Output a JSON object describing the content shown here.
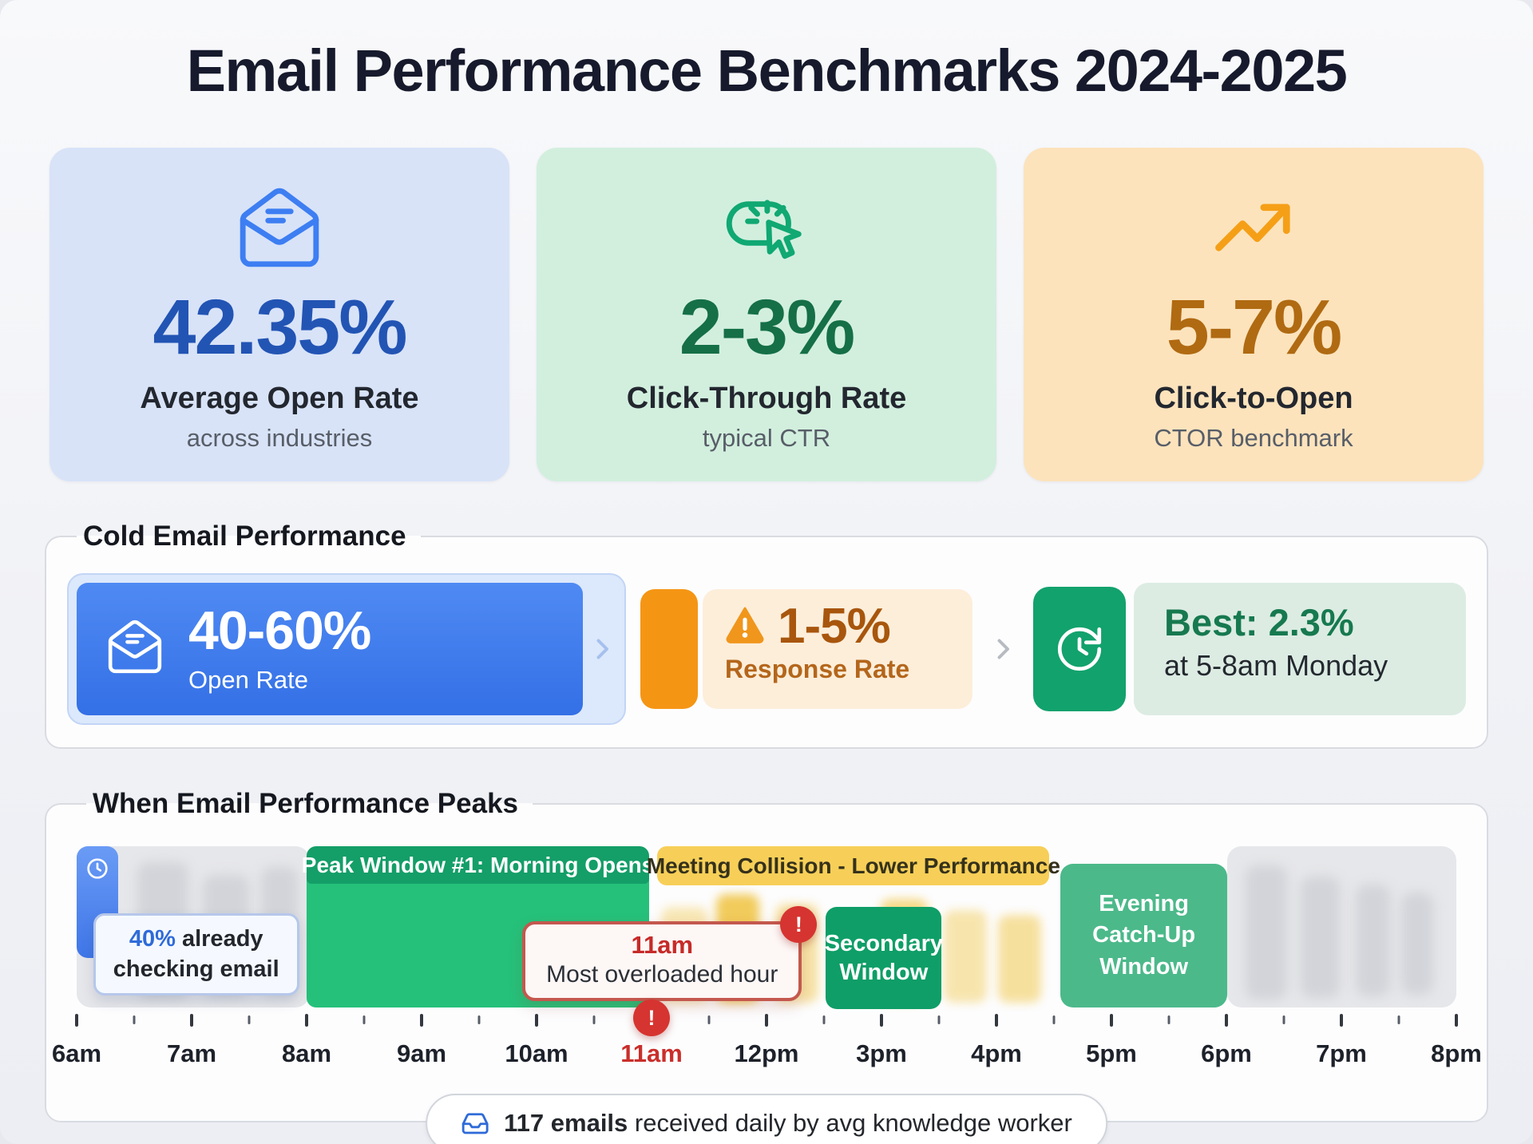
{
  "page": {
    "title": "Email Performance Benchmarks 2024-2025"
  },
  "alert_glyph": "!",
  "stat_cards": [
    {
      "value": "42.35%",
      "label": "Average Open Rate",
      "sublabel": "across industries",
      "icon": "mail-open-icon",
      "accent": "#2254b4",
      "bg": "#d8e3f8"
    },
    {
      "value": "2-3%",
      "label": "Click-Through Rate",
      "sublabel": "typical CTR",
      "icon": "cursor-click-icon",
      "accent": "#156f47",
      "bg": "#d2efde"
    },
    {
      "value": "5-7%",
      "label": "Click-to-Open",
      "sublabel": "CTOR benchmark",
      "icon": "trending-up-icon",
      "accent": "#b06a12",
      "bg": "#fce3bc"
    }
  ],
  "cold_email": {
    "legend": "Cold Email Performance",
    "open_rate": {
      "value": "40-60%",
      "label": "Open Rate"
    },
    "response_rate": {
      "value": "1-5%",
      "label": "Response Rate"
    },
    "best_send_time": {
      "value": "Best: 2.3%",
      "detail": "at 5-8am Monday"
    }
  },
  "peaks": {
    "legend": "When Email Performance Peaks",
    "early_callout": {
      "strong": "40%",
      "rest": " already",
      "line2": "checking email"
    },
    "peak_window_label": "Peak Window #1: Morning Opens",
    "collision_label": "Meeting Collision - Lower Performance",
    "overload_callout": {
      "time": "11am",
      "text": "Most overloaded hour"
    },
    "secondary_window": {
      "line1": "Secondary",
      "line2": "Window"
    },
    "evening_window": {
      "line1": "Evening",
      "line2": "Catch-Up",
      "line3": "Window"
    },
    "hours": [
      "6am",
      "7am",
      "8am",
      "9am",
      "10am",
      "11am",
      "12pm",
      "3pm",
      "4pm",
      "5pm",
      "6pm",
      "7pm",
      "8pm"
    ],
    "highlighted_hour": "11am",
    "footer": {
      "strong": "117 emails",
      "rest": " received daily by avg knowledge worker"
    }
  },
  "colors": {
    "accent_blue": "#3d7ef2",
    "accent_green": "#10a873",
    "accent_orange": "#f59f17",
    "peak_green_header": "#149e68",
    "peak_green_body": "#25c17a",
    "collision_yellow": "#f7cf58",
    "secondary_green": "#0f9e67",
    "evening_green": "#4cb98a",
    "alert_red": "#d63430",
    "cold_blue_pill": "#3e7cee",
    "response_orange": "#f59514"
  },
  "chart_data": {
    "type": "bar",
    "title": "When Email Performance Peaks",
    "x": [
      "6am",
      "7am",
      "8am",
      "9am",
      "10am",
      "11am",
      "12pm",
      "3pm",
      "4pm",
      "5pm",
      "6pm",
      "7pm",
      "8pm"
    ],
    "highlighted_tick": "11am",
    "windows": [
      {
        "label": "40% already checking email",
        "start": "6am",
        "end": "6:30am",
        "style": "blue"
      },
      {
        "label": "Peak Window #1: Morning Opens",
        "start": "8am",
        "end": "11am",
        "style": "green"
      },
      {
        "label": "Meeting Collision - Lower Performance",
        "start": "11am",
        "end": "4pm",
        "style": "yellow"
      },
      {
        "label": "Secondary Window",
        "start": "12pm",
        "end": "3pm",
        "style": "green"
      },
      {
        "label": "Evening Catch-Up Window",
        "start": "4pm",
        "end": "6pm",
        "style": "green"
      }
    ],
    "annotations": [
      {
        "at": "11am",
        "text": "Most overloaded hour",
        "style": "red-alert"
      }
    ],
    "footnote": "117 emails received daily by avg knowledge worker",
    "stats": [
      {
        "value": 42.35,
        "unit": "%",
        "label": "Average Open Rate (across industries)"
      },
      {
        "range": [
          2,
          3
        ],
        "unit": "%",
        "label": "Click-Through Rate (typical CTR)"
      },
      {
        "range": [
          5,
          7
        ],
        "unit": "%",
        "label": "Click-to-Open (CTOR benchmark)"
      },
      {
        "range": [
          40,
          60
        ],
        "unit": "%",
        "label": "Cold email Open Rate"
      },
      {
        "range": [
          1,
          5
        ],
        "unit": "%",
        "label": "Cold email Response Rate"
      },
      {
        "value": 2.3,
        "unit": "%",
        "label": "Best cold response at 5-8am Monday"
      },
      {
        "value": 117,
        "unit": "emails/day",
        "label": "received daily by avg knowledge worker"
      }
    ]
  }
}
